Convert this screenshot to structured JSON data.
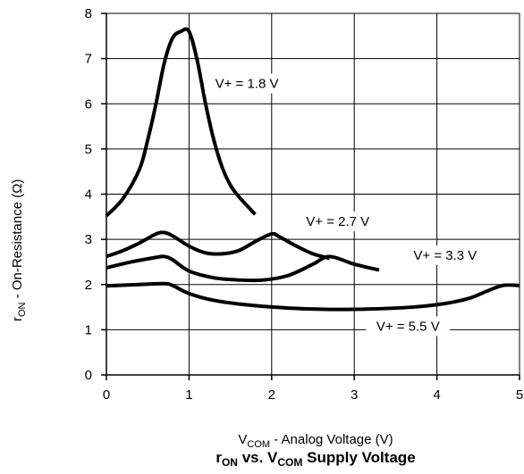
{
  "chart_data": {
    "type": "line",
    "title": {
      "r": "r",
      "r_sub": "ON",
      "mid": " vs. V",
      "v_sub": "COM",
      "tail": " Supply Voltage"
    },
    "xlabel": {
      "main": "V",
      "sub": "COM",
      "rest": " - Analog Voltage (V)"
    },
    "ylabel": {
      "main": "r",
      "sub": "ON",
      "rest": "  -  On-Resistance (Ω)"
    },
    "xlim": [
      0,
      5
    ],
    "ylim": [
      0,
      8
    ],
    "xticks": [
      "0",
      "1",
      "2",
      "3",
      "4",
      "5"
    ],
    "yticks": [
      "0",
      "1",
      "2",
      "3",
      "4",
      "5",
      "6",
      "7",
      "8"
    ],
    "grid": true,
    "series": [
      {
        "name": "V+ = 1.8 V",
        "x": [
          0,
          0.2,
          0.4,
          0.5,
          0.6,
          0.7,
          0.8,
          0.9,
          1.0,
          1.1,
          1.2,
          1.3,
          1.4,
          1.5,
          1.6,
          1.7,
          1.8
        ],
        "y": [
          3.52,
          3.9,
          4.55,
          5.2,
          6.0,
          6.9,
          7.45,
          7.6,
          7.6,
          6.95,
          6.0,
          5.2,
          4.6,
          4.2,
          3.95,
          3.75,
          3.55
        ]
      },
      {
        "name": "V+ = 2.7 V",
        "x": [
          0,
          0.2,
          0.4,
          0.6,
          0.7,
          0.8,
          1.0,
          1.2,
          1.4,
          1.6,
          1.8,
          2.0,
          2.1,
          2.3,
          2.5,
          2.7
        ],
        "y": [
          2.62,
          2.75,
          2.92,
          3.12,
          3.15,
          3.08,
          2.85,
          2.7,
          2.68,
          2.75,
          2.95,
          3.12,
          3.05,
          2.85,
          2.68,
          2.58
        ]
      },
      {
        "name": "V+ = 3.3 V",
        "x": [
          0,
          0.3,
          0.6,
          0.7,
          0.8,
          1.0,
          1.3,
          1.6,
          1.9,
          2.2,
          2.5,
          2.7,
          3.0,
          3.3
        ],
        "y": [
          2.37,
          2.5,
          2.6,
          2.62,
          2.55,
          2.3,
          2.15,
          2.1,
          2.1,
          2.2,
          2.45,
          2.62,
          2.45,
          2.32
        ]
      },
      {
        "name": "V+ = 5.5 V",
        "x": [
          0,
          0.4,
          0.7,
          0.8,
          1.0,
          1.3,
          1.7,
          2.2,
          2.7,
          3.2,
          3.7,
          4.1,
          4.4,
          4.6,
          4.8,
          5.0
        ],
        "y": [
          1.97,
          2.0,
          2.02,
          1.98,
          1.8,
          1.65,
          1.55,
          1.48,
          1.45,
          1.46,
          1.5,
          1.58,
          1.7,
          1.85,
          1.98,
          1.98
        ]
      }
    ]
  }
}
